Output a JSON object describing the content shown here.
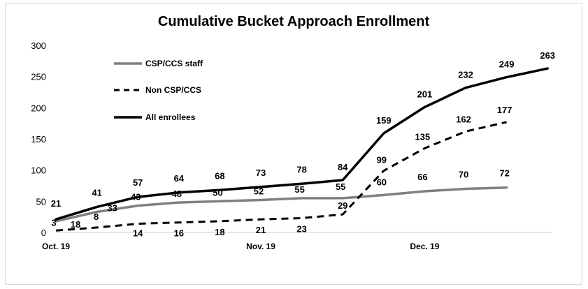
{
  "chart_data": {
    "type": "line",
    "title": "Cumulative Bucket Approach Enrollment",
    "xlabel": "",
    "ylabel": "",
    "ylim": [
      0,
      300
    ],
    "yticks": [
      "0",
      "50",
      "100",
      "150",
      "200",
      "250",
      "300"
    ],
    "x_tick_labels": [
      "Oct. 19",
      "Nov. 19",
      "Dec. 19"
    ],
    "grid": false,
    "legend_position": "top-left",
    "series": [
      {
        "name": "CSP/CCS staff",
        "color": "#808080",
        "style": "solid",
        "values": [
          18,
          33,
          43,
          48,
          50,
          52,
          55,
          55,
          60,
          66,
          70,
          72
        ],
        "labels": [
          "18",
          "33",
          "43",
          "48",
          "50",
          "52",
          "55",
          "55",
          "60",
          "66",
          "70",
          "72"
        ]
      },
      {
        "name": "Non CSP/CCS",
        "color": "#000000",
        "style": "dashed",
        "values": [
          3,
          8,
          14,
          16,
          18,
          21,
          23,
          29,
          99,
          135,
          162,
          177
        ],
        "labels": [
          "3",
          "8",
          "14",
          "16",
          "18",
          "21",
          "23",
          "29",
          "99",
          "135",
          "162",
          "177"
        ]
      },
      {
        "name": "All enrollees",
        "color": "#000000",
        "style": "solid",
        "values": [
          21,
          41,
          57,
          64,
          68,
          73,
          78,
          84,
          159,
          201,
          232,
          249,
          263
        ],
        "labels": [
          "21",
          "41",
          "57",
          "64",
          "68",
          "73",
          "78",
          "84",
          "159",
          "201",
          "232",
          "249",
          "263"
        ]
      }
    ]
  }
}
